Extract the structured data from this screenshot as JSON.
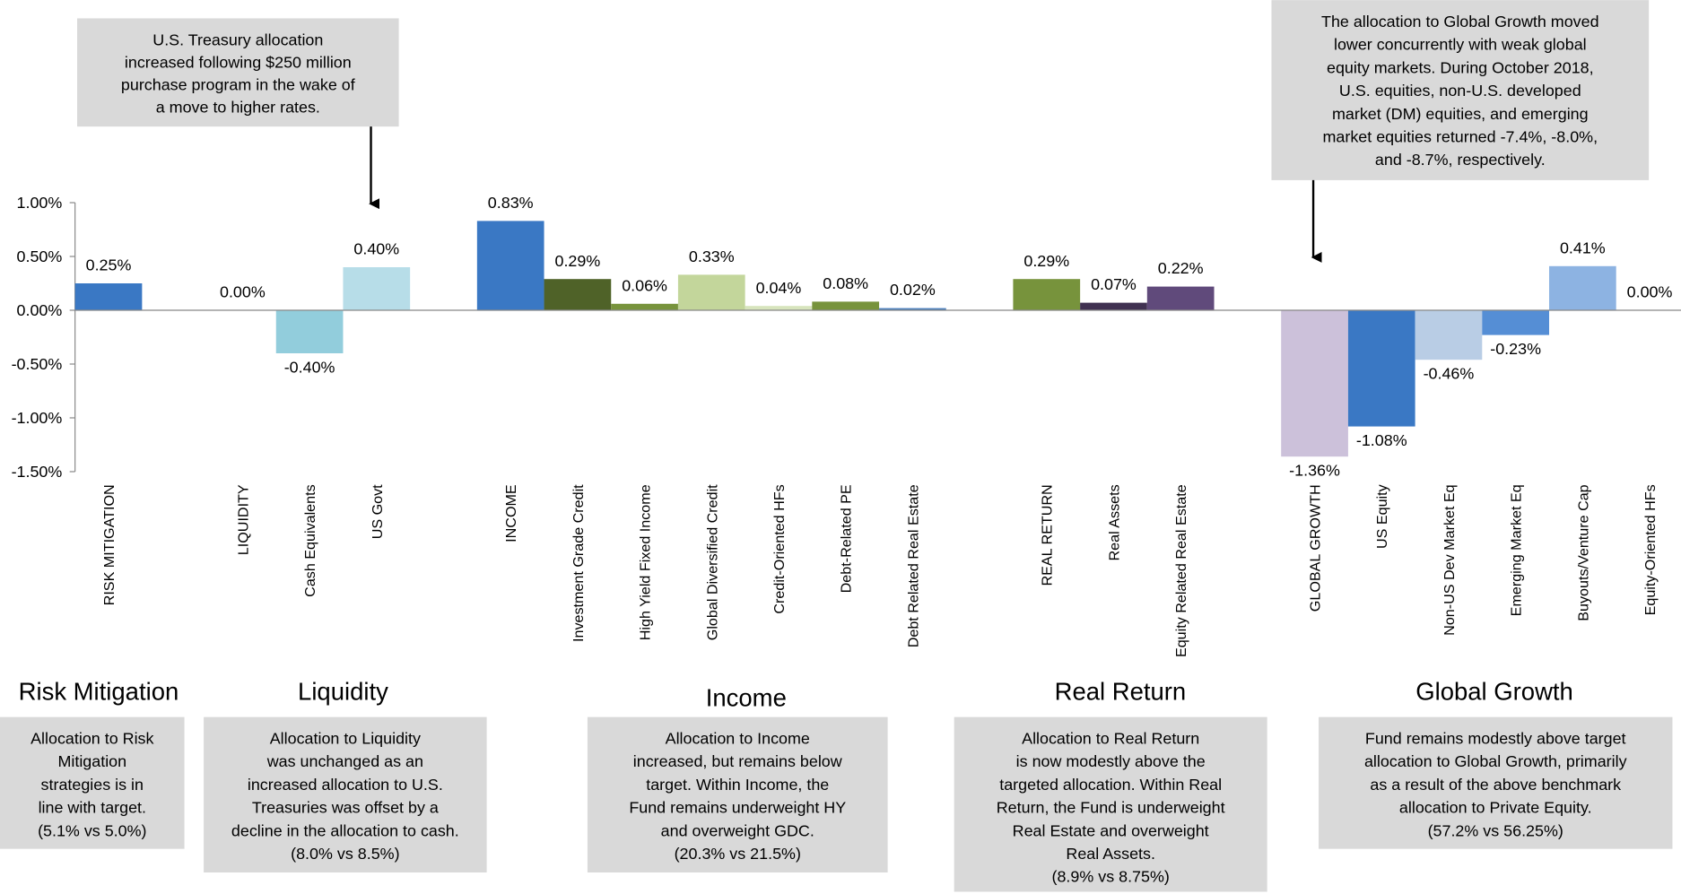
{
  "chart_data": {
    "type": "bar",
    "categories": [
      "RISK MITIGATION",
      null,
      "LIQUIDITY",
      "Cash Equivalents",
      "US Govt",
      null,
      "INCOME",
      "Investment Grade Credit",
      "High Yield Fixed Income",
      "Global Diversified Credit",
      "Credit-Oriented HFs",
      "Debt-Related PE",
      "Debt Related Real Estate",
      null,
      "REAL RETURN",
      "Real Assets",
      "Equity Related Real Estate",
      null,
      "GLOBAL GROWTH",
      "US  Equity",
      "Non-US Dev Market Eq",
      "Emerging Market Eq",
      "Buyouts/Venture Cap",
      "Equity-Oriented HFs"
    ],
    "values": [
      0.25,
      null,
      0.0,
      -0.4,
      0.4,
      null,
      0.83,
      0.29,
      0.06,
      0.33,
      0.04,
      0.08,
      0.02,
      null,
      0.29,
      0.07,
      0.22,
      null,
      -1.36,
      -1.08,
      -0.46,
      -0.23,
      0.41,
      0.0
    ],
    "value_labels": [
      "0.25%",
      null,
      "0.00%",
      "-0.40%",
      "0.40%",
      null,
      "0.83%",
      "0.29%",
      "0.06%",
      "0.33%",
      "0.04%",
      "0.08%",
      "0.02%",
      null,
      "0.29%",
      "0.07%",
      "0.22%",
      null,
      "-1.36%",
      "-1.08%",
      "-0.46%",
      "-0.23%",
      "0.41%",
      "0.00%"
    ],
    "colors": [
      "#3a78c4",
      null,
      "#3a78c4",
      "#92cddc",
      "#b7dde8",
      null,
      "#3a78c4",
      "#4f6228",
      "#77933c",
      "#c3d69b",
      "#d7e4bd",
      "#77933c",
      "#4f81bd",
      null,
      "#77933c",
      "#403151",
      "#604a7b",
      null,
      "#ccc1da",
      "#3a78c4",
      "#b9cde5",
      "#558ed5",
      "#8db3e2",
      "#8db3e2"
    ],
    "ylim": [
      -1.5,
      1
    ],
    "yticks": [
      {
        "value": -1.5,
        "label": "-1.50%"
      },
      {
        "value": -1,
        "label": "-1.00%"
      },
      {
        "value": -0.5,
        "label": "-0.50%"
      },
      {
        "value": 0,
        "label": "0.00%"
      },
      {
        "value": 0.5,
        "label": "0.50%"
      },
      {
        "value": 1,
        "label": "1.00%"
      }
    ],
    "annotations": [
      {
        "lines": [
          "U.S. Treasury allocation",
          "increased following $250 million",
          "purchase program in the wake of",
          "a move to higher rates."
        ]
      },
      {
        "lines": [
          "The allocation to Global Growth moved",
          "lower concurrently with weak global",
          "equity markets.  During October 2018,",
          "U.S. equities, non-U.S. developed",
          "market (DM) equities, and emerging",
          "market equities returned -7.4%, -8.0%,",
          "and -8.7%, respectively."
        ]
      }
    ],
    "sections": [
      {
        "title": "Risk Mitigation",
        "lines": [
          "Allocation to Risk",
          "Mitigation",
          "strategies is in",
          "line with target.",
          "(5.1% vs 5.0%)"
        ]
      },
      {
        "title": "Liquidity",
        "lines": [
          "Allocation to Liquidity",
          "was unchanged as an",
          "increased allocation to U.S.",
          "Treasuries was offset by a",
          "decline in the allocation to cash.",
          "(8.0% vs 8.5%)"
        ]
      },
      {
        "title": "Income",
        "lines": [
          "Allocation to Income",
          "increased, but remains below",
          "target. Within Income, the",
          "Fund remains underweight HY",
          "and overweight GDC.",
          "(20.3% vs 21.5%)"
        ]
      },
      {
        "title": "Real Return",
        "lines": [
          "Allocation to Real Return",
          "is now modestly above the",
          "targeted allocation.  Within Real",
          "Return, the Fund is underweight",
          "Real Estate and overweight",
          "Real Assets.",
          "(8.9% vs 8.75%)"
        ]
      },
      {
        "title": "Global Growth",
        "lines": [
          "Fund remains modestly above target",
          "allocation to Global Growth, primarily",
          "as a result of the above benchmark",
          "allocation to Private Equity.",
          "(57.2% vs 56.25%)"
        ]
      }
    ]
  }
}
